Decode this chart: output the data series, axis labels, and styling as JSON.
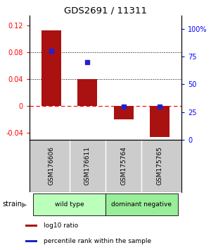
{
  "title": "GDS2691 / 11311",
  "samples": [
    "GSM176606",
    "GSM176611",
    "GSM175764",
    "GSM175765"
  ],
  "log10_ratio": [
    0.113,
    0.04,
    -0.02,
    -0.046
  ],
  "percentile_rank": [
    80,
    70,
    30,
    30
  ],
  "bar_color": "#aa1111",
  "dot_color": "#2222cc",
  "ylim_left": [
    -0.05,
    0.135
  ],
  "ylim_right": [
    0,
    112
  ],
  "yticks_left": [
    -0.04,
    0.0,
    0.04,
    0.08,
    0.12
  ],
  "yticks_right": [
    0,
    25,
    50,
    75,
    100
  ],
  "dotted_lines": [
    0.04,
    0.08
  ],
  "dashed_zero": 0.0,
  "groups": [
    {
      "label": "wild type",
      "indices": [
        0,
        1
      ],
      "color": "#bbffbb"
    },
    {
      "label": "dominant negative",
      "indices": [
        2,
        3
      ],
      "color": "#99ee99"
    }
  ],
  "strain_label": "strain",
  "legend_items": [
    {
      "color": "#aa1111",
      "label": "log10 ratio"
    },
    {
      "color": "#2222cc",
      "label": "percentile rank within the sample"
    }
  ],
  "bar_width": 0.55,
  "background_color": "#ffffff",
  "label_area_color": "#cccccc"
}
